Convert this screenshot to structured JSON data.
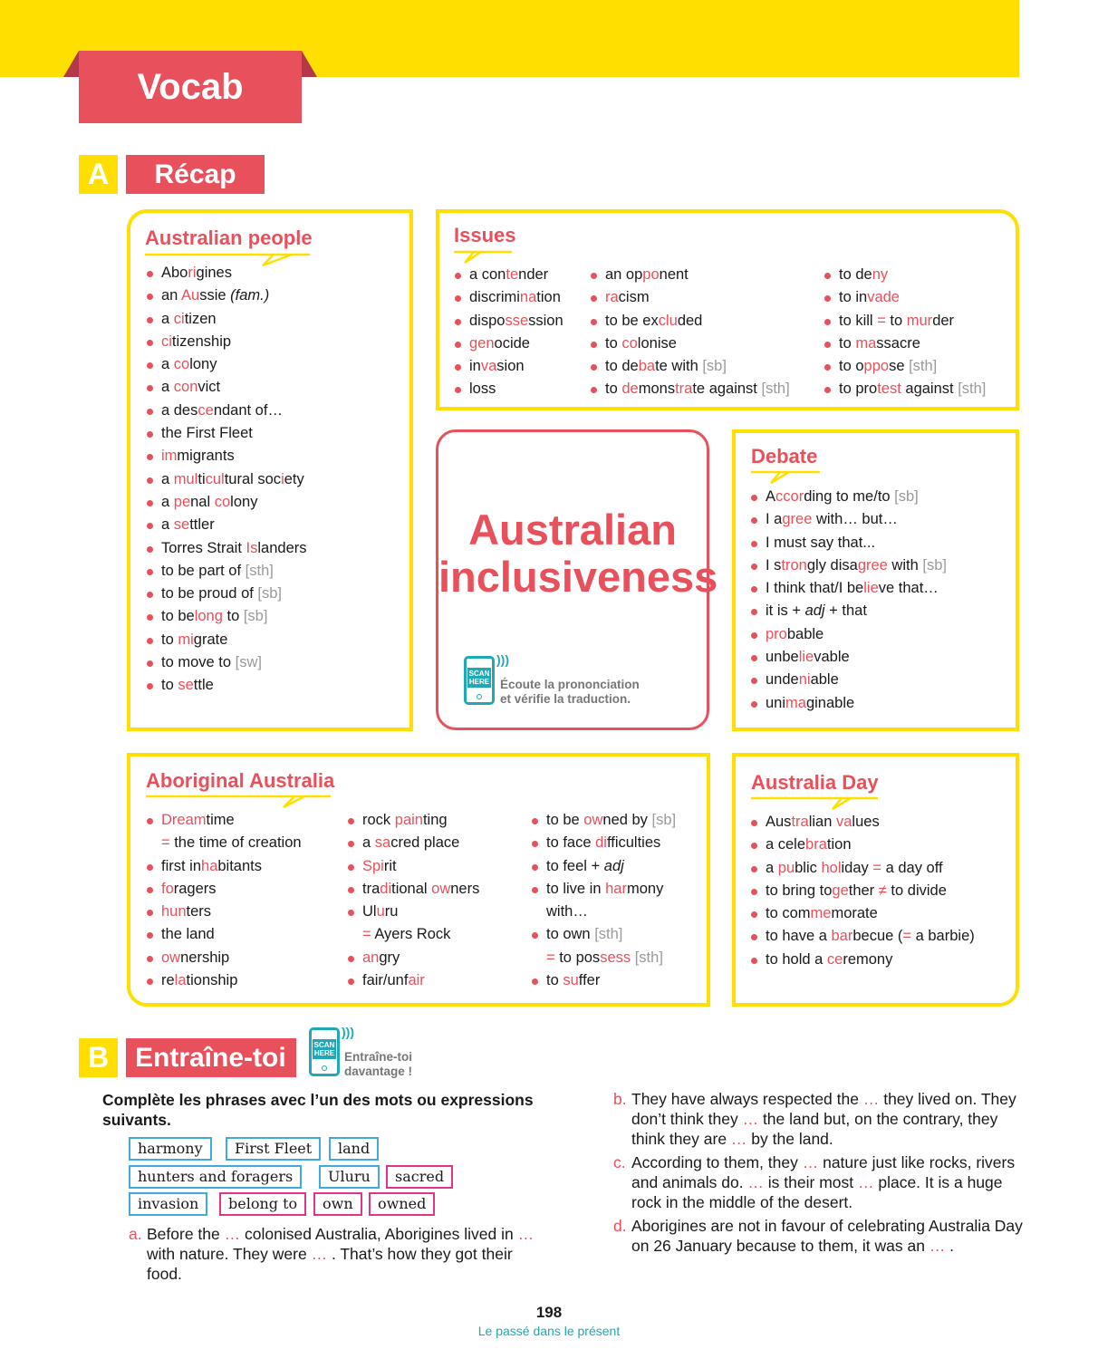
{
  "header": {
    "title": "Vocab"
  },
  "section_a": {
    "letter": "A",
    "title": "Récap"
  },
  "australian_people": {
    "title": "Australian people",
    "items": [
      "Abo{ri}gines",
      "an {Au}ssie _(fam.)_",
      "a {ci}tizen",
      "{ci}tizenship",
      "a {co}lony",
      "a {con}vict",
      "a des{ce}ndant of…",
      "the First Fleet",
      "{im}migrants",
      "a {mul}ti{cul}tural soc{i}ety",
      "a {pe}nal {co}lony",
      "a {se}ttler",
      "Torres Strait {Is}landers",
      "to be part of [sth]",
      "to be proud of [sb]",
      "to be{long} to [sb]",
      "to {mi}grate",
      "to move to [sw]",
      "to {se}ttle"
    ]
  },
  "issues": {
    "title": "Issues",
    "col1": [
      "a con{te}nder",
      "discrimi{na}tion",
      "dispo{sse}ssion",
      "{gen}ocide",
      "in{va}sion",
      "loss"
    ],
    "col2": [
      "an op{po}nent",
      "{ra}cism",
      "to be ex{clu}ded",
      "to {co}lonise",
      "to de{ba}te with [sb]",
      "to {de}mons{tra}te against [sth]"
    ],
    "col3": [
      "to de{ny}",
      "to in{vade}",
      "to kill {=} to {mur}der",
      "to {ma}ssacre",
      "to o{ppo}se [sth]",
      "to pro{test} against [sth]"
    ]
  },
  "inclusiveness": {
    "title_line1": "Australian",
    "title_line2": "inclusiveness",
    "scan_label": "SCAN HERE",
    "scan_text_line1": "Écoute la prononciation",
    "scan_text_line2": "et vérifie la traduction."
  },
  "debate": {
    "title": "Debate",
    "items": [
      "A{ccor}ding to me/to [sb]",
      "I a{gree} with… but…",
      "I must say that...",
      "I s{tron}gly disa{gree} with [sb]",
      "I think that/I be{lie}ve that…",
      "it is + _adj_ + that",
      "{pro}bable",
      "unbe{lie}vable",
      "unde{ni}able",
      "uni{ma}ginable"
    ]
  },
  "aboriginal_australia": {
    "title": "Aboriginal Australia",
    "col1": [
      "{Dream}time",
      "~{=} the time of creation",
      "first in{ha}bitants",
      "{fo}ragers",
      "{hun}ters",
      "the land",
      "{ow}nership",
      "re{la}tionship"
    ],
    "col2": [
      "rock {pain}ting",
      "a {sa}cred place",
      "{Spi}rit",
      "tra{di}tional {ow}ners",
      "Ul{u}ru",
      "~{=} Ayers Rock",
      "{an}gry",
      "fair/unf{air}"
    ],
    "col3": [
      "to be {ow}ned by [sb]",
      "to face {di}fficulties",
      "to feel + _adj_",
      "to live in {har}mony",
      "~with…",
      "to own [sth]",
      "~{=} to pos{sess} [sth]",
      "to {su}ffer"
    ]
  },
  "australia_day": {
    "title": "Australia Day",
    "items": [
      "Aus{tra}lian {va}lues",
      "a cele{bra}tion",
      "a {pu}blic {hol}iday {=} a day off",
      "to bring to{ge}ther {≠} to divide",
      "to com{me}morate",
      "to have a {bar}becue ({=} a barbie)",
      "to hold a {ce}remony"
    ]
  },
  "section_b": {
    "letter": "B",
    "title": "Entraîne-toi",
    "scan_label": "SCAN HERE",
    "scan_text_line1": "Entraîne-toi",
    "scan_text_line2": "davantage !"
  },
  "exercise": {
    "instruction": "Complète les phrases avec l’un des mots ou expressions suivants.",
    "words": [
      {
        "text": "harmony",
        "color": "blue"
      },
      {
        "text": "First Fleet",
        "color": "blue"
      },
      {
        "text": "land",
        "color": "blue"
      },
      {
        "text": "hunters and foragers",
        "color": "blue"
      },
      {
        "text": "Uluru",
        "color": "blue"
      },
      {
        "text": "sacred",
        "color": "pink"
      },
      {
        "text": "invasion",
        "color": "blue"
      },
      {
        "text": "belong to",
        "color": "pink"
      },
      {
        "text": "own",
        "color": "pink"
      },
      {
        "text": "owned",
        "color": "pink"
      }
    ],
    "questions": [
      {
        "label": "a.",
        "text": "Before the {…} colonised Australia, Aborigines lived in {…} with nature. They were {…} . That’s how they got their food."
      },
      {
        "label": "b.",
        "text": "They have always respected the {…} they lived on. They don’t think they {…} the land but, on the contrary, they think they are {…} by the land."
      },
      {
        "label": "c.",
        "text": "According to them, they {…} nature just like rocks, rivers and animals do. {…} is their most {…} place. It is a huge rock in the middle of the desert."
      },
      {
        "label": "d.",
        "text": "Aborigines are not in favour of celebrating Australia Day on 26 January because to them, it was an {…} ."
      }
    ]
  },
  "footer": {
    "page_number": "198",
    "chapter": "Le passé dans le présent"
  },
  "colors": {
    "red": "#e8505b",
    "yellow": "#ffdf00",
    "teal": "#1fa8b5",
    "chip_blue": "#3fa9e0",
    "chip_pink": "#e0338a"
  },
  "icons": [
    "scan-phone-icon",
    "bullet-icon"
  ]
}
